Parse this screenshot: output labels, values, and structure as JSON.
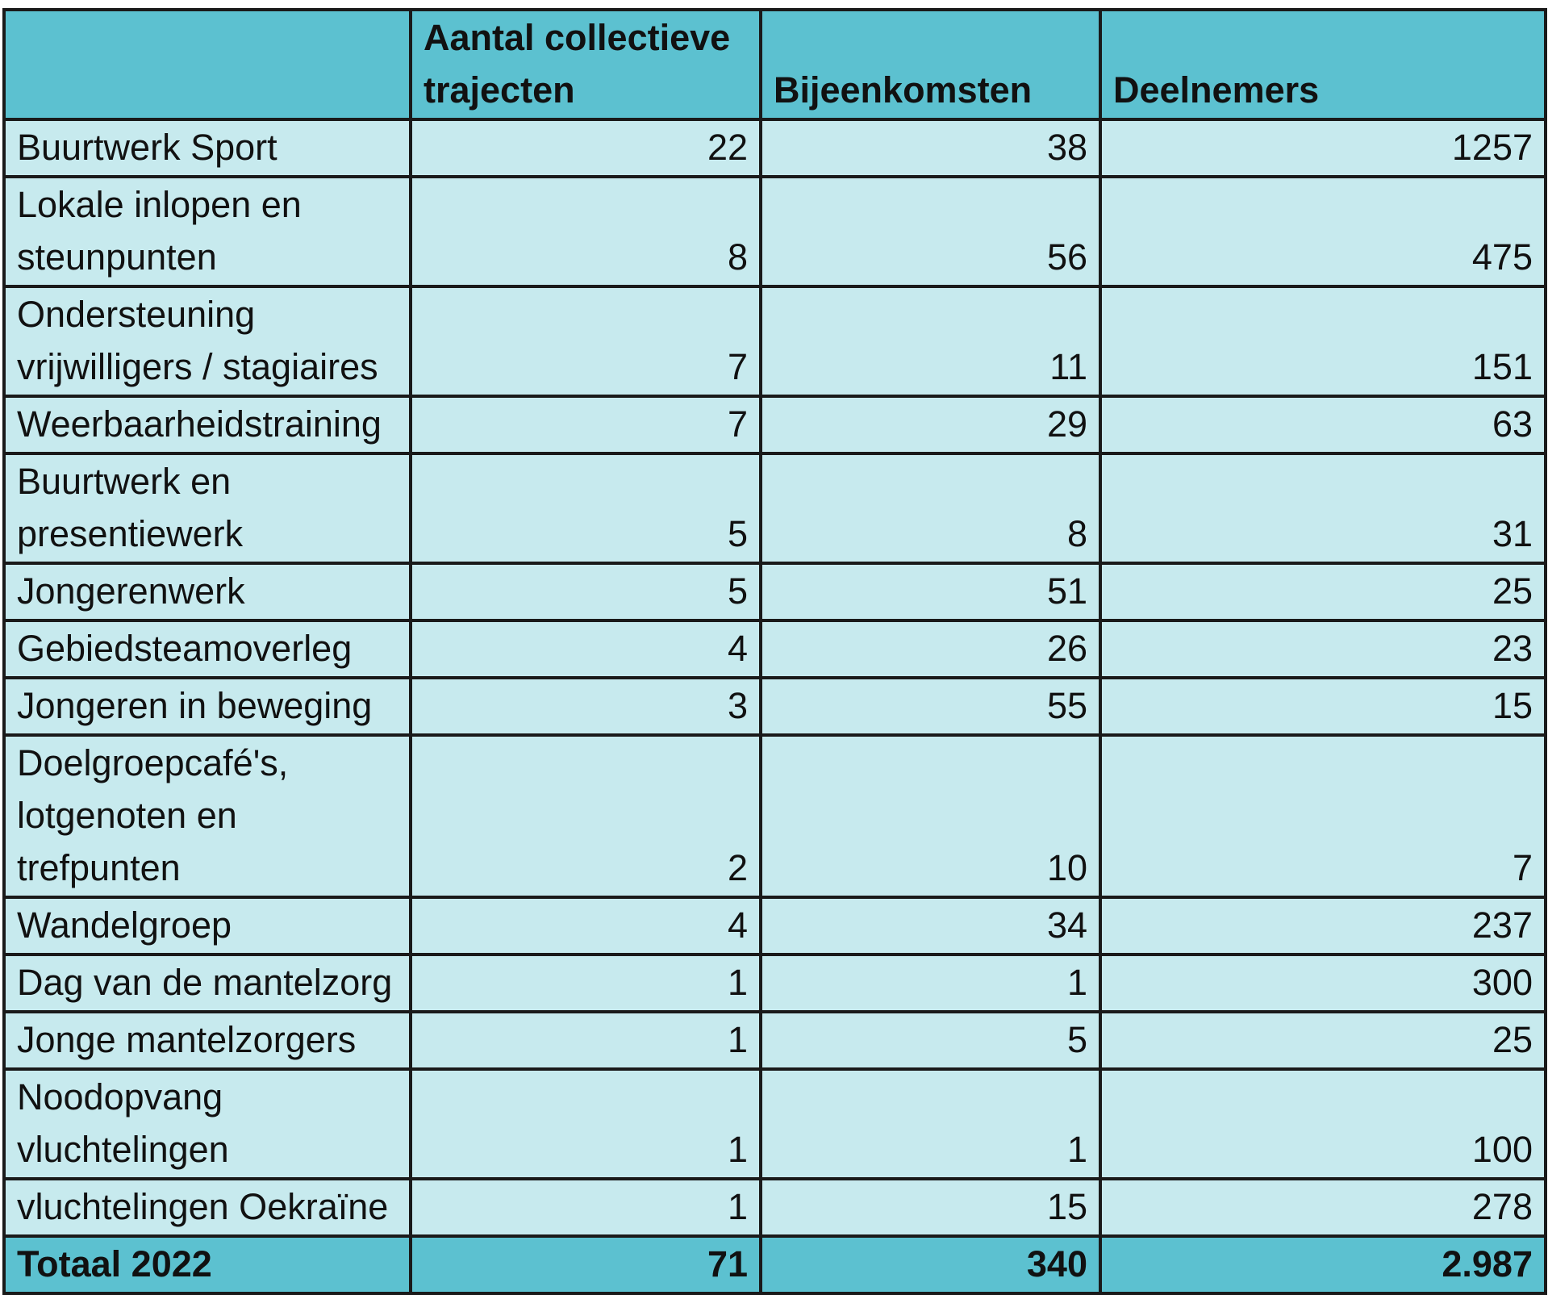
{
  "table": {
    "headers": [
      "",
      "Aantal collectieve trajecten",
      "Bijeenkomsten",
      "Deelnemers"
    ],
    "rows": [
      {
        "label": "Buurtwerk Sport",
        "trajecten": "22",
        "bijeenkomsten": "38",
        "deelnemers": "1257"
      },
      {
        "label": "Lokale inlopen en steunpunten",
        "trajecten": "8",
        "bijeenkomsten": "56",
        "deelnemers": "475"
      },
      {
        "label": "Ondersteuning vrijwilligers / stagiaires",
        "trajecten": "7",
        "bijeenkomsten": "11",
        "deelnemers": "151"
      },
      {
        "label": "Weerbaarheidstraining",
        "trajecten": "7",
        "bijeenkomsten": "29",
        "deelnemers": "63"
      },
      {
        "label": "Buurtwerk en presentiewerk",
        "trajecten": "5",
        "bijeenkomsten": "8",
        "deelnemers": "31"
      },
      {
        "label": "Jongerenwerk",
        "trajecten": "5",
        "bijeenkomsten": "51",
        "deelnemers": "25"
      },
      {
        "label": "Gebiedsteamoverleg",
        "trajecten": "4",
        "bijeenkomsten": "26",
        "deelnemers": "23"
      },
      {
        "label": "Jongeren in beweging",
        "trajecten": "3",
        "bijeenkomsten": "55",
        "deelnemers": "15"
      },
      {
        "label": "Doelgroepcafé's, lotgenoten en trefpunten",
        "trajecten": "2",
        "bijeenkomsten": "10",
        "deelnemers": "7"
      },
      {
        "label": "Wandelgroep",
        "trajecten": "4",
        "bijeenkomsten": "34",
        "deelnemers": "237"
      },
      {
        "label": "Dag van de mantelzorg",
        "trajecten": "1",
        "bijeenkomsten": "1",
        "deelnemers": "300"
      },
      {
        "label": "Jonge mantelzorgers",
        "trajecten": "1",
        "bijeenkomsten": "5",
        "deelnemers": "25"
      },
      {
        "label": "Noodopvang vluchtelingen",
        "trajecten": "1",
        "bijeenkomsten": "1",
        "deelnemers": "100"
      },
      {
        "label": "vluchtelingen Oekraïne",
        "trajecten": "1",
        "bijeenkomsten": "15",
        "deelnemers": "278"
      }
    ],
    "total": {
      "label": "Totaal 2022",
      "trajecten": "71",
      "bijeenkomsten": "340",
      "deelnemers": "2.987"
    }
  },
  "colors": {
    "header_background": "#5cc1d0",
    "row_background": "#c7eaee",
    "border": "#1a1a1a"
  }
}
